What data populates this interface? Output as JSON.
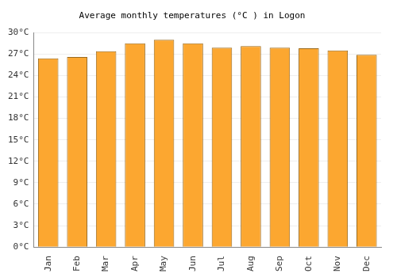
{
  "chart_data": {
    "type": "bar",
    "title": "Average monthly temperatures (°C ) in Logon",
    "categories": [
      "Jan",
      "Feb",
      "Mar",
      "Apr",
      "May",
      "Jun",
      "Jul",
      "Aug",
      "Sep",
      "Oct",
      "Nov",
      "Dec"
    ],
    "values": [
      26.4,
      26.6,
      27.4,
      28.5,
      29.0,
      28.5,
      27.9,
      28.1,
      27.9,
      27.8,
      27.5,
      26.9
    ],
    "color": "#fca730",
    "ylim": [
      0,
      30
    ],
    "yticks": [
      {
        "value": 0,
        "label": "0°C"
      },
      {
        "value": 3,
        "label": "3°C"
      },
      {
        "value": 6,
        "label": "6°C"
      },
      {
        "value": 9,
        "label": "9°C"
      },
      {
        "value": 12,
        "label": "12°C"
      },
      {
        "value": 15,
        "label": "15°C"
      },
      {
        "value": 18,
        "label": "18°C"
      },
      {
        "value": 21,
        "label": "21°C"
      },
      {
        "value": 24,
        "label": "24°C"
      },
      {
        "value": 27,
        "label": "27°C"
      },
      {
        "value": 30,
        "label": "30°C"
      }
    ],
    "grid": true
  }
}
